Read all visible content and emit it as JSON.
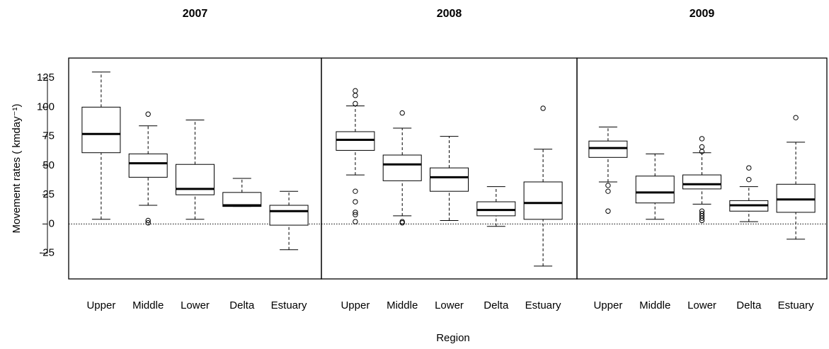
{
  "xlabel": "Region",
  "chart_data": [
    {
      "type": "box",
      "title": "2007",
      "ylabel": "Movement rates ( kmday⁻¹)",
      "ylim": [
        -47,
        142
      ],
      "yticks": [
        -25,
        0,
        25,
        50,
        75,
        100,
        125
      ],
      "hline": 0,
      "categories": [
        "Upper",
        "Middle",
        "Lower",
        "Delta",
        "Estuary"
      ],
      "boxes": [
        {
          "whislo": 4,
          "q1": 61,
          "med": 77,
          "q3": 100,
          "whishi": 130,
          "fliers": []
        },
        {
          "whislo": 16,
          "q1": 40,
          "med": 52,
          "q3": 60,
          "whishi": 84,
          "fliers": [
            94,
            3,
            1
          ]
        },
        {
          "whislo": 4,
          "q1": 25,
          "med": 30,
          "q3": 51,
          "whishi": 89,
          "fliers": []
        },
        {
          "whislo": 15,
          "q1": 15,
          "med": 16,
          "q3": 27,
          "whishi": 39,
          "fliers": []
        },
        {
          "whislo": -22,
          "q1": -1,
          "med": 11,
          "q3": 16,
          "whishi": 28,
          "fliers": []
        }
      ]
    },
    {
      "type": "box",
      "title": "2008",
      "ylim": [
        -47,
        142
      ],
      "hline": 0,
      "categories": [
        "Upper",
        "Middle",
        "Lower",
        "Delta",
        "Estuary"
      ],
      "boxes": [
        {
          "whislo": 42,
          "q1": 63,
          "med": 72,
          "q3": 79,
          "whishi": 101,
          "fliers": [
            114,
            110,
            103,
            28,
            19,
            10,
            8,
            2
          ]
        },
        {
          "whislo": 7,
          "q1": 37,
          "med": 51,
          "q3": 59,
          "whishi": 82,
          "fliers": [
            95,
            2,
            1
          ]
        },
        {
          "whislo": 3,
          "q1": 28,
          "med": 40,
          "q3": 48,
          "whishi": 75,
          "fliers": []
        },
        {
          "whislo": -2,
          "q1": 7,
          "med": 12,
          "q3": 19,
          "whishi": 32,
          "fliers": []
        },
        {
          "whislo": -36,
          "q1": 4,
          "med": 18,
          "q3": 36,
          "whishi": 64,
          "fliers": [
            99
          ]
        }
      ]
    },
    {
      "type": "box",
      "title": "2009",
      "ylim": [
        -47,
        142
      ],
      "hline": 0,
      "categories": [
        "Upper",
        "Middle",
        "Lower",
        "Delta",
        "Estuary"
      ],
      "boxes": [
        {
          "whislo": 36,
          "q1": 57,
          "med": 65,
          "q3": 71,
          "whishi": 83,
          "fliers": [
            33,
            28,
            11
          ]
        },
        {
          "whislo": 4,
          "q1": 18,
          "med": 27,
          "q3": 41,
          "whishi": 60,
          "fliers": []
        },
        {
          "whislo": 17,
          "q1": 30,
          "med": 34,
          "q3": 42,
          "whishi": 61,
          "fliers": [
            73,
            66,
            62,
            11,
            9,
            7,
            5,
            3
          ]
        },
        {
          "whislo": 2,
          "q1": 11,
          "med": 16,
          "q3": 20,
          "whishi": 32,
          "fliers": [
            48,
            38
          ]
        },
        {
          "whislo": -13,
          "q1": 10,
          "med": 21,
          "q3": 34,
          "whishi": 70,
          "fliers": [
            91
          ]
        }
      ]
    }
  ]
}
